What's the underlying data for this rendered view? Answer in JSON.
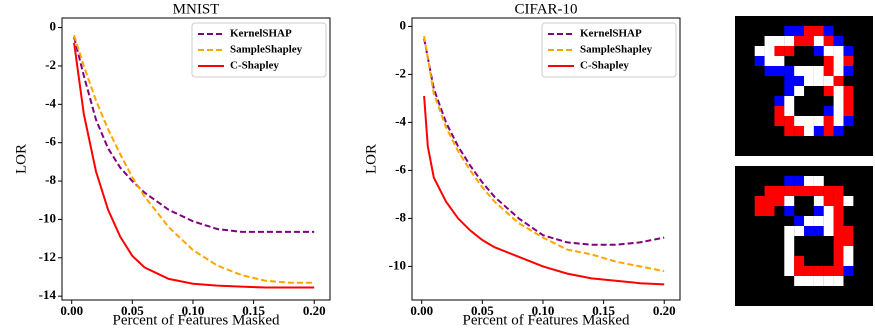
{
  "chart_data": [
    {
      "type": "line",
      "title": "MNIST",
      "x_label": "Percent of Features Masked",
      "y_label": "LOR",
      "xlim": [
        -0.008,
        0.213
      ],
      "ylim": [
        -14.2,
        0.5
      ],
      "xticks": [
        {
          "value": 0,
          "label": "0.00"
        },
        {
          "value": 0.05,
          "label": "0.05"
        },
        {
          "value": 0.1,
          "label": "0.10"
        },
        {
          "value": 0.15,
          "label": "0.15"
        },
        {
          "value": 0.2,
          "label": "0.20"
        }
      ],
      "yticks": [
        0,
        -2,
        -4,
        -6,
        -8,
        -10,
        -12,
        -14
      ],
      "legend": "upper right",
      "series": [
        {
          "name": "KernelSHAP",
          "color": "#800080",
          "linestyle": "dashed",
          "x": [
            0.002,
            0.01,
            0.02,
            0.03,
            0.04,
            0.05,
            0.06,
            0.08,
            0.1,
            0.12,
            0.14,
            0.16,
            0.18,
            0.2
          ],
          "values": [
            -0.5,
            -2.5,
            -4.8,
            -6.3,
            -7.3,
            -8.0,
            -8.6,
            -9.5,
            -10.1,
            -10.5,
            -10.65,
            -10.65,
            -10.65,
            -10.65
          ]
        },
        {
          "name": "SampleShapley",
          "color": "#ffa500",
          "linestyle": "dashed",
          "x": [
            0.002,
            0.01,
            0.02,
            0.03,
            0.04,
            0.05,
            0.06,
            0.08,
            0.1,
            0.12,
            0.14,
            0.16,
            0.18,
            0.2
          ],
          "values": [
            -0.4,
            -2.0,
            -3.8,
            -5.3,
            -6.6,
            -7.8,
            -8.8,
            -10.4,
            -11.6,
            -12.4,
            -12.9,
            -13.2,
            -13.3,
            -13.3
          ]
        },
        {
          "name": "C-Shapley",
          "color": "#ff0000",
          "linestyle": "solid",
          "x": [
            0.002,
            0.01,
            0.02,
            0.03,
            0.04,
            0.05,
            0.06,
            0.08,
            0.1,
            0.12,
            0.14,
            0.16,
            0.18,
            0.2
          ],
          "values": [
            -0.8,
            -4.5,
            -7.5,
            -9.5,
            -10.9,
            -11.9,
            -12.5,
            -13.1,
            -13.35,
            -13.45,
            -13.5,
            -13.55,
            -13.55,
            -13.55
          ]
        }
      ]
    },
    {
      "type": "line",
      "title": "CIFAR-10",
      "x_label": "Percent of Features Masked",
      "y_label": "LOR",
      "xlim": [
        -0.008,
        0.213
      ],
      "ylim": [
        -11.4,
        0.35
      ],
      "xticks": [
        {
          "value": 0,
          "label": "0.00"
        },
        {
          "value": 0.05,
          "label": "0.05"
        },
        {
          "value": 0.1,
          "label": "0.10"
        },
        {
          "value": 0.15,
          "label": "0.15"
        },
        {
          "value": 0.2,
          "label": "0.20"
        }
      ],
      "yticks": [
        0,
        -2,
        -4,
        -6,
        -8,
        -10
      ],
      "legend": "upper right",
      "series": [
        {
          "name": "KernelSHAP",
          "color": "#800080",
          "linestyle": "dashed",
          "x": [
            0.002,
            0.01,
            0.02,
            0.03,
            0.04,
            0.05,
            0.06,
            0.08,
            0.1,
            0.12,
            0.14,
            0.16,
            0.18,
            0.2
          ],
          "values": [
            -0.5,
            -2.6,
            -4.0,
            -5.0,
            -5.8,
            -6.5,
            -7.1,
            -8.0,
            -8.7,
            -9.0,
            -9.1,
            -9.1,
            -9.0,
            -8.8
          ]
        },
        {
          "name": "SampleShapley",
          "color": "#ffa500",
          "linestyle": "dashed",
          "x": [
            0.002,
            0.01,
            0.02,
            0.03,
            0.04,
            0.05,
            0.06,
            0.08,
            0.1,
            0.12,
            0.14,
            0.16,
            0.18,
            0.2
          ],
          "values": [
            -0.4,
            -2.8,
            -4.2,
            -5.2,
            -6.0,
            -6.7,
            -7.3,
            -8.2,
            -8.8,
            -9.3,
            -9.5,
            -9.8,
            -10.0,
            -10.2
          ]
        },
        {
          "name": "C-Shapley",
          "color": "#ff0000",
          "linestyle": "solid",
          "x": [
            0.002,
            0.005,
            0.01,
            0.02,
            0.03,
            0.04,
            0.05,
            0.06,
            0.08,
            0.1,
            0.12,
            0.14,
            0.16,
            0.18,
            0.2
          ],
          "values": [
            -2.9,
            -5.0,
            -6.3,
            -7.3,
            -8.0,
            -8.5,
            -8.9,
            -9.2,
            -9.6,
            -10.0,
            -10.3,
            -10.5,
            -10.6,
            -10.7,
            -10.75
          ]
        }
      ]
    }
  ]
}
